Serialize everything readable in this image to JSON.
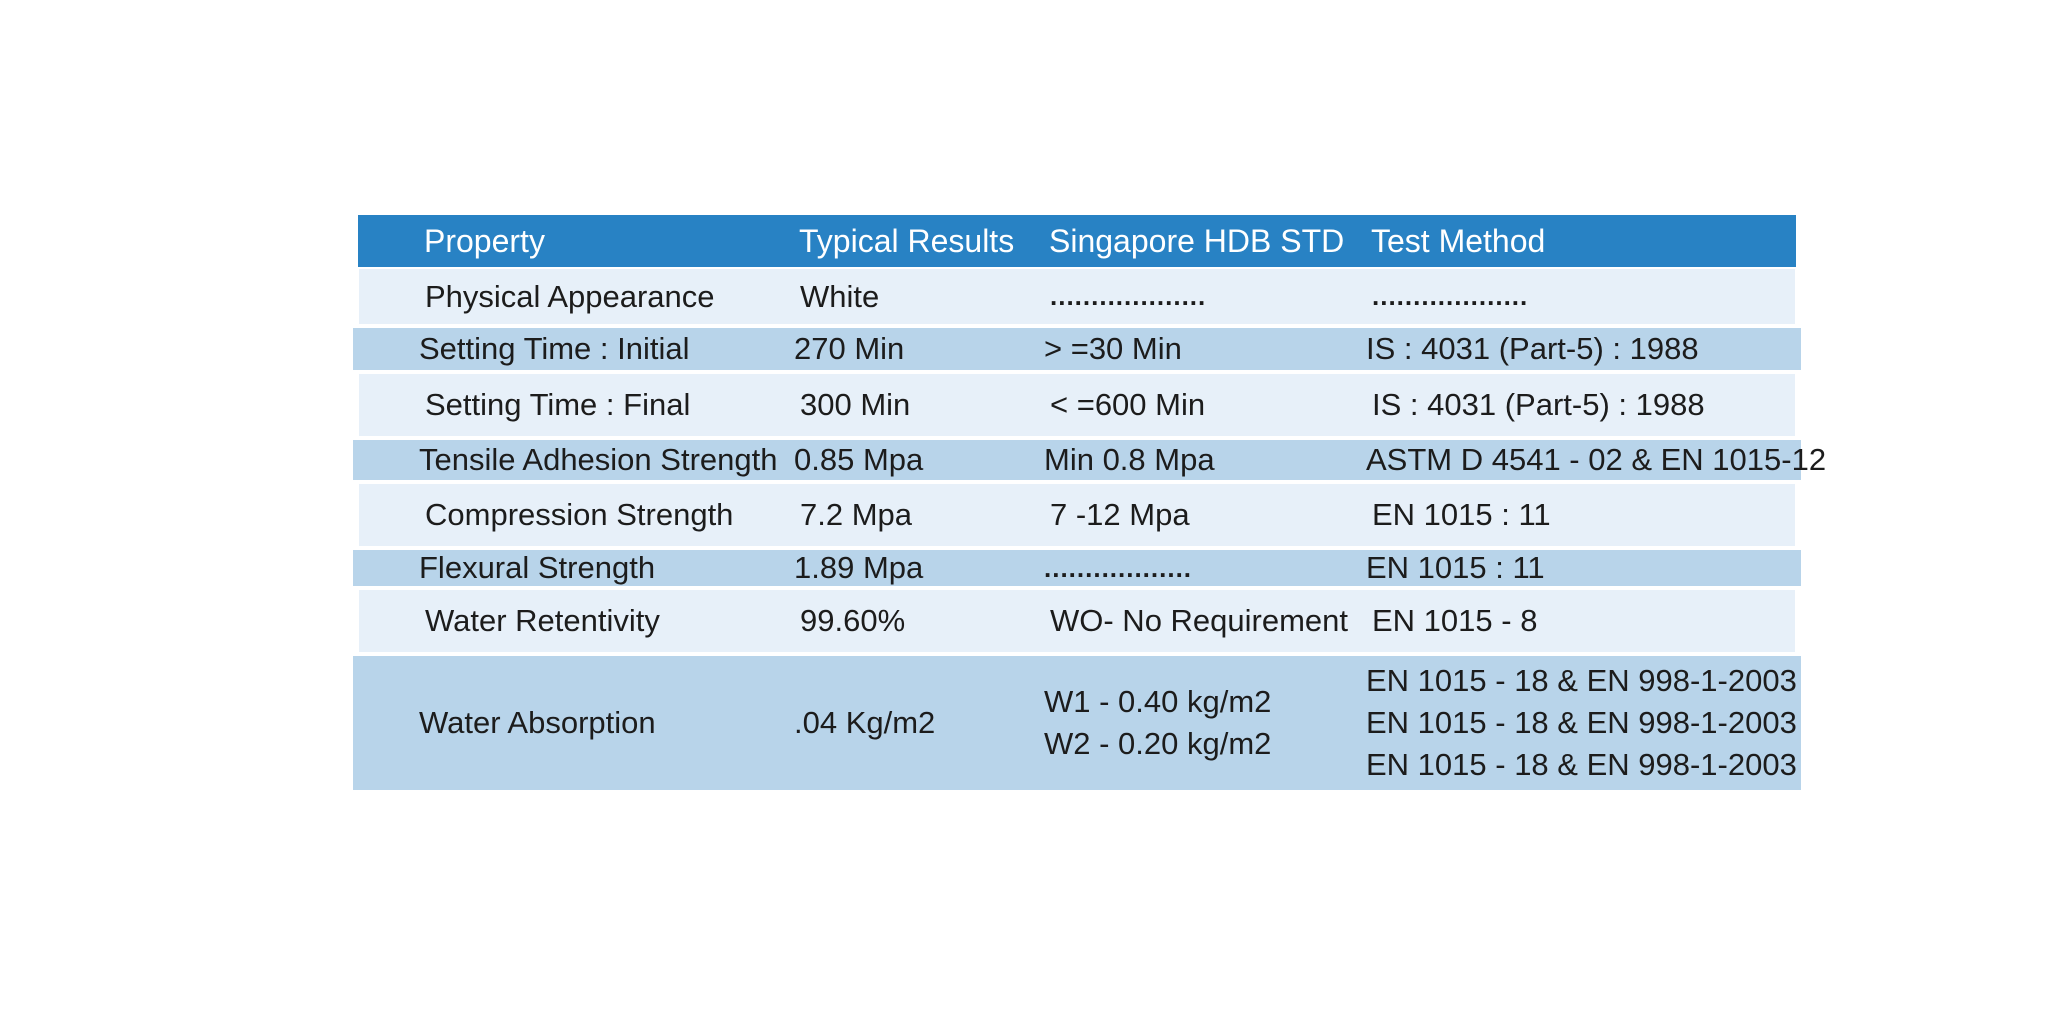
{
  "table": {
    "colors": {
      "header_bg": "#2882c4",
      "header_text": "#ffffff",
      "row_light": "#e7f0f9",
      "row_medium": "#b8d4ea",
      "text": "#1c1c1c"
    },
    "headers": [
      "Property",
      "Typical Results",
      "Singapore HDB STD",
      "Test Method"
    ],
    "rows": [
      {
        "property": "Physical Appearance",
        "typical": "White",
        "std": "...................",
        "method": "..................."
      },
      {
        "property": "Setting Time : Initial",
        "typical": "270 Min",
        "std": "> =30 Min",
        "method": "IS : 4031 (Part-5) : 1988"
      },
      {
        "property": "Setting Time : Final",
        "typical": "300 Min",
        "std": "< =600 Min",
        "method": "IS : 4031 (Part-5) : 1988"
      },
      {
        "property": "Tensile Adhesion Strength",
        "typical": "0.85 Mpa",
        "std": "Min 0.8 Mpa",
        "method": "ASTM D 4541 - 02 & EN 1015-12"
      },
      {
        "property": "Compression Strength",
        "typical": "7.2 Mpa",
        "std": "7 -12 Mpa",
        "method": "EN 1015 : 11"
      },
      {
        "property": "Flexural Strength",
        "typical": "1.89 Mpa",
        "std": "..................",
        "method": "EN 1015 : 11"
      },
      {
        "property": "Water Retentivity",
        "typical": "99.60%",
        "std": "WO- No Requirement",
        "method": "EN 1015 - 8"
      },
      {
        "property": "Water Absorption",
        "typical": ".04 Kg/m2",
        "std_lines": [
          "W1 - 0.40 kg/m2",
          "W2 - 0.20 kg/m2"
        ],
        "method_lines": [
          "EN 1015 - 18 & EN 998-1-2003",
          "EN 1015 - 18 & EN 998-1-2003",
          "EN 1015 - 18 & EN 998-1-2003"
        ]
      }
    ]
  }
}
